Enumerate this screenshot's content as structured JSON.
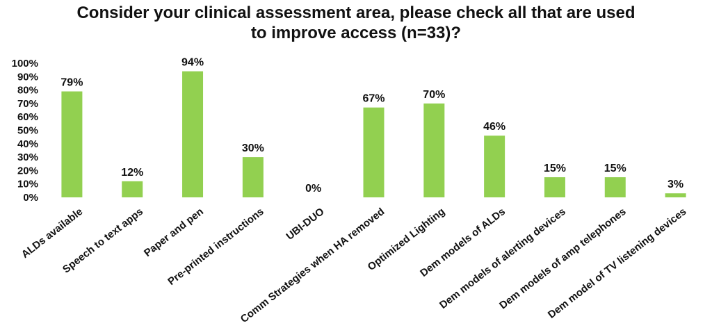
{
  "chart_data": {
    "type": "bar",
    "title": "Consider your clinical assessment area, please check all that are used to improve access (n=33)?",
    "categories": [
      "ALDs available",
      "Speech to text apps",
      "Paper and pen",
      "Pre-printed instructions",
      "UBI-DUO",
      "Comm Strategies when HA removed",
      "Optimized Lighting",
      "Dem models of ALDs",
      "Dem models of alerting devices",
      "Dem models of amp telephones",
      "Dem model of TV listening devices"
    ],
    "values": [
      79,
      12,
      94,
      30,
      0,
      67,
      70,
      46,
      15,
      15,
      3
    ],
    "data_labels": [
      "79%",
      "12%",
      "94%",
      "30%",
      "0%",
      "67%",
      "70%",
      "46%",
      "15%",
      "15%",
      "3%"
    ],
    "y_ticks": [
      "0%",
      "10%",
      "20%",
      "30%",
      "40%",
      "50%",
      "60%",
      "70%",
      "80%",
      "90%",
      "100%"
    ],
    "ylim": [
      0,
      100
    ],
    "xlabel": "",
    "ylabel": "",
    "grid": false,
    "legend": "none",
    "bar_color": "#92D050"
  }
}
